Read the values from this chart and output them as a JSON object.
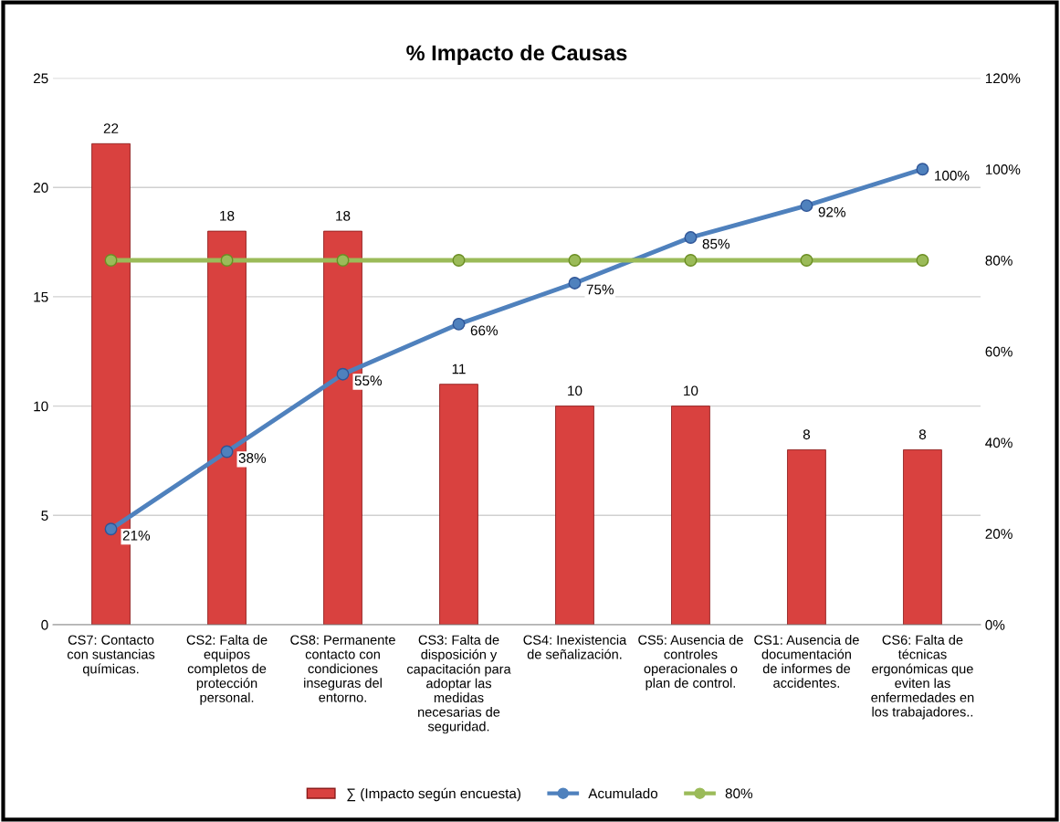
{
  "chart_data": {
    "type": "bar",
    "title": "% Impacto de Causas",
    "categories": [
      "CS7: Contacto\ncon sustancias\nquímicas.",
      "CS2: Falta de\nequipos\ncompletos de\nprotección\npersonal.",
      "CS8: Permanente\ncontacto con\ncondiciones\ninseguras del\nentorno.",
      "CS3: Falta de\ndisposición y\ncapacitación para\nadoptar las\nmedidas\nnecesarias de\nseguridad.",
      "CS4: Inexistencia\nde señalización.",
      "CS5: Ausencia de\ncontroles\noperacionales o\nplan de control.",
      "CS1: Ausencia de\ndocumentación\nde informes de\naccidentes.",
      "CS6: Falta de\ntécnicas\nergonómicas que\neviten las\nenfermedades en\nlos trabajadores.."
    ],
    "series": [
      {
        "name": "∑ (Impacto según encuesta)",
        "color": "#d9413f",
        "values": [
          22,
          18,
          18,
          11,
          10,
          10,
          8,
          8
        ],
        "data_labels": true
      },
      {
        "name": "Acumulado",
        "type": "line",
        "axis": "y2",
        "color": "#4f81bd",
        "marker": "circle",
        "values": [
          21,
          38,
          55,
          66,
          75,
          85,
          92,
          100
        ],
        "value_labels": [
          "21%",
          "38%",
          "55%",
          "66%",
          "75%",
          "85%",
          "92%",
          "100%"
        ]
      },
      {
        "name": "80%",
        "type": "line",
        "axis": "y2",
        "color": "#9bbb59",
        "marker": "circle",
        "values": [
          80,
          80,
          80,
          80,
          80,
          80,
          80,
          80
        ]
      }
    ],
    "ylim": [
      0,
      25
    ],
    "yticks": [
      0,
      5,
      10,
      15,
      20,
      25
    ],
    "y2lim": [
      0,
      120
    ],
    "y2ticks": [
      {
        "value": 0,
        "label": "0%"
      },
      {
        "value": 20,
        "label": "20%"
      },
      {
        "value": 40,
        "label": "40%"
      },
      {
        "value": 60,
        "label": "60%"
      },
      {
        "value": 80,
        "label": "80%"
      },
      {
        "value": 100,
        "label": "100%"
      },
      {
        "value": 120,
        "label": "120%"
      }
    ],
    "grid": "y",
    "legend": "bottom"
  }
}
